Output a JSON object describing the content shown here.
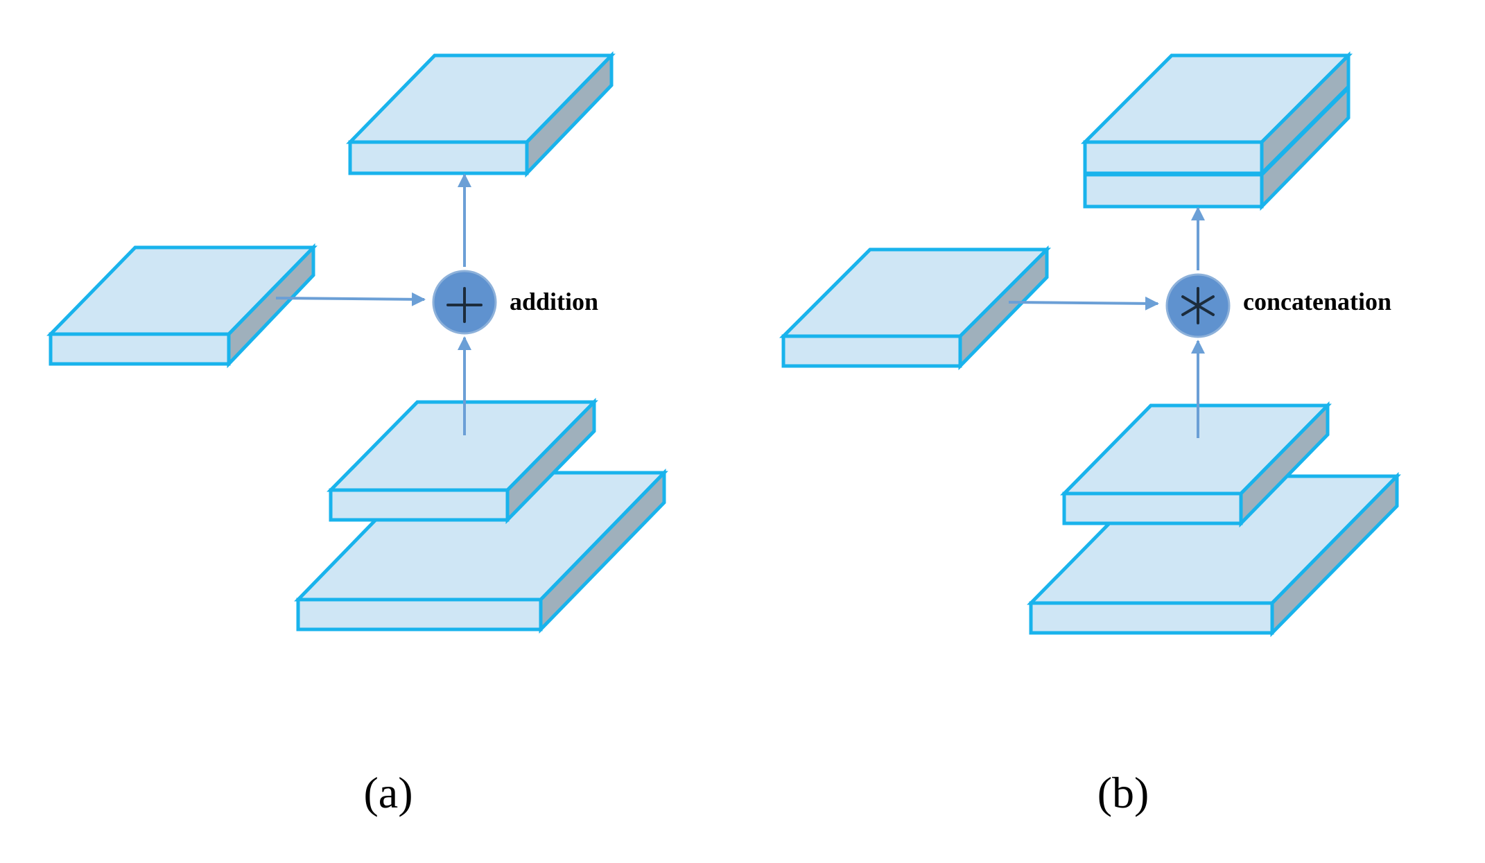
{
  "panel_a": {
    "operation_label": "addition",
    "operator_symbol": "plus",
    "caption": "(a)"
  },
  "panel_b": {
    "operation_label": "concatenation",
    "operator_symbol": "asterisk",
    "caption": "(b)"
  },
  "colors": {
    "slab_fill": "#cfe6f5",
    "slab_side": "#9fb0bc",
    "slab_outline": "#19b3ec",
    "arrow": "#6b9fd6",
    "operator_node": "#5f92cf"
  }
}
